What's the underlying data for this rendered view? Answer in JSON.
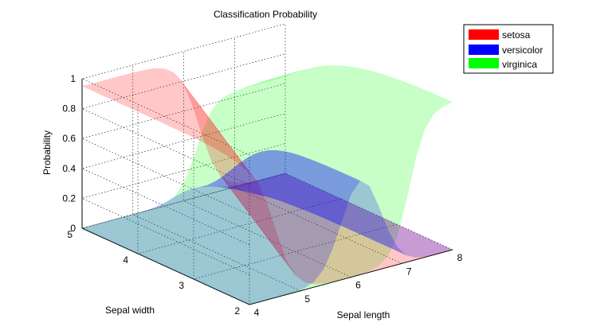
{
  "chart_data": {
    "type": "surface",
    "title": "Classification Probability",
    "xlabel": "Sepal length",
    "ylabel": "Sepal width",
    "zlabel": "Probability",
    "xlim": [
      4,
      8
    ],
    "ylim": [
      2,
      5
    ],
    "zlim": [
      0,
      1
    ],
    "x_ticks": [
      4,
      5,
      6,
      7,
      8
    ],
    "y_ticks": [
      2,
      3,
      4,
      5
    ],
    "z_ticks": [
      0,
      0.2,
      0.4,
      0.6,
      0.8,
      1
    ],
    "z_tick_labels": [
      "0",
      "0.2",
      "0.4",
      "0.6",
      "0.8",
      "1"
    ],
    "grid": true,
    "legend_position": "top-right",
    "series": [
      {
        "name": "setosa",
        "color": "#ff0000",
        "description_values": {
          "peak_probability": 0.95,
          "boundary_center_x": 5.5
        }
      },
      {
        "name": "versicolor",
        "color": "#0000ff",
        "description_values": {
          "peak_probability": 0.63,
          "peak_x": 6.2
        }
      },
      {
        "name": "virginica",
        "color": "#00ff00",
        "description_values": {
          "peak_probability": 1.0,
          "boundary_center_x": 6.9
        }
      }
    ]
  }
}
